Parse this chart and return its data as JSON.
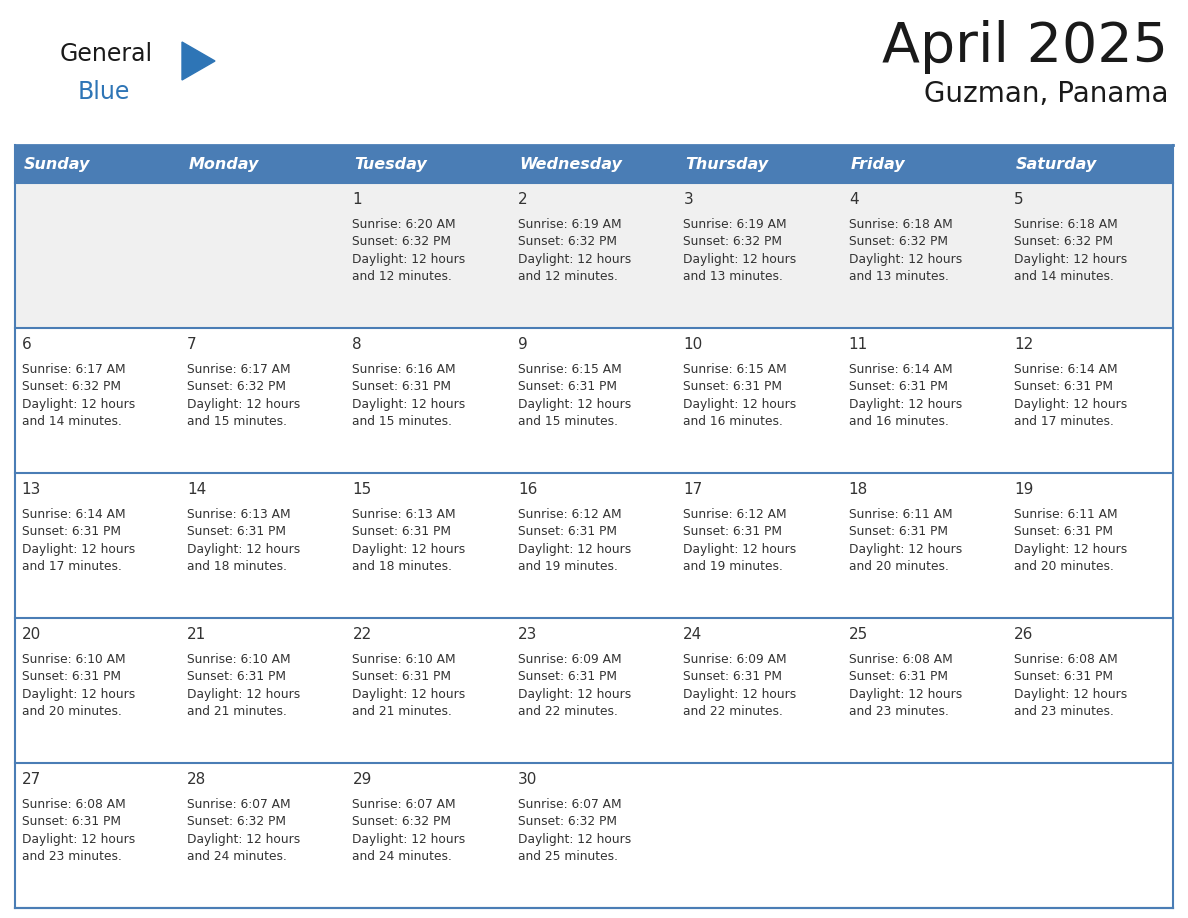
{
  "title": "April 2025",
  "subtitle": "Guzman, Panama",
  "days_of_week": [
    "Sunday",
    "Monday",
    "Tuesday",
    "Wednesday",
    "Thursday",
    "Friday",
    "Saturday"
  ],
  "header_bg": "#4A7DB5",
  "header_text": "#FFFFFF",
  "cell_bg": "#FFFFFF",
  "first_row_bg": "#F0F0F0",
  "cell_text_color": "#333333",
  "day_num_color": "#333333",
  "grid_line_color": "#4A7DB5",
  "title_color": "#1a1a1a",
  "subtitle_color": "#1a1a1a",
  "logo_general_color": "#1a1a1a",
  "logo_blue_color": "#2E75B6",
  "calendar_data": [
    [
      {
        "day": null,
        "info": null
      },
      {
        "day": null,
        "info": null
      },
      {
        "day": 1,
        "info": "Sunrise: 6:20 AM\nSunset: 6:32 PM\nDaylight: 12 hours\nand 12 minutes."
      },
      {
        "day": 2,
        "info": "Sunrise: 6:19 AM\nSunset: 6:32 PM\nDaylight: 12 hours\nand 12 minutes."
      },
      {
        "day": 3,
        "info": "Sunrise: 6:19 AM\nSunset: 6:32 PM\nDaylight: 12 hours\nand 13 minutes."
      },
      {
        "day": 4,
        "info": "Sunrise: 6:18 AM\nSunset: 6:32 PM\nDaylight: 12 hours\nand 13 minutes."
      },
      {
        "day": 5,
        "info": "Sunrise: 6:18 AM\nSunset: 6:32 PM\nDaylight: 12 hours\nand 14 minutes."
      }
    ],
    [
      {
        "day": 6,
        "info": "Sunrise: 6:17 AM\nSunset: 6:32 PM\nDaylight: 12 hours\nand 14 minutes."
      },
      {
        "day": 7,
        "info": "Sunrise: 6:17 AM\nSunset: 6:32 PM\nDaylight: 12 hours\nand 15 minutes."
      },
      {
        "day": 8,
        "info": "Sunrise: 6:16 AM\nSunset: 6:31 PM\nDaylight: 12 hours\nand 15 minutes."
      },
      {
        "day": 9,
        "info": "Sunrise: 6:15 AM\nSunset: 6:31 PM\nDaylight: 12 hours\nand 15 minutes."
      },
      {
        "day": 10,
        "info": "Sunrise: 6:15 AM\nSunset: 6:31 PM\nDaylight: 12 hours\nand 16 minutes."
      },
      {
        "day": 11,
        "info": "Sunrise: 6:14 AM\nSunset: 6:31 PM\nDaylight: 12 hours\nand 16 minutes."
      },
      {
        "day": 12,
        "info": "Sunrise: 6:14 AM\nSunset: 6:31 PM\nDaylight: 12 hours\nand 17 minutes."
      }
    ],
    [
      {
        "day": 13,
        "info": "Sunrise: 6:14 AM\nSunset: 6:31 PM\nDaylight: 12 hours\nand 17 minutes."
      },
      {
        "day": 14,
        "info": "Sunrise: 6:13 AM\nSunset: 6:31 PM\nDaylight: 12 hours\nand 18 minutes."
      },
      {
        "day": 15,
        "info": "Sunrise: 6:13 AM\nSunset: 6:31 PM\nDaylight: 12 hours\nand 18 minutes."
      },
      {
        "day": 16,
        "info": "Sunrise: 6:12 AM\nSunset: 6:31 PM\nDaylight: 12 hours\nand 19 minutes."
      },
      {
        "day": 17,
        "info": "Sunrise: 6:12 AM\nSunset: 6:31 PM\nDaylight: 12 hours\nand 19 minutes."
      },
      {
        "day": 18,
        "info": "Sunrise: 6:11 AM\nSunset: 6:31 PM\nDaylight: 12 hours\nand 20 minutes."
      },
      {
        "day": 19,
        "info": "Sunrise: 6:11 AM\nSunset: 6:31 PM\nDaylight: 12 hours\nand 20 minutes."
      }
    ],
    [
      {
        "day": 20,
        "info": "Sunrise: 6:10 AM\nSunset: 6:31 PM\nDaylight: 12 hours\nand 20 minutes."
      },
      {
        "day": 21,
        "info": "Sunrise: 6:10 AM\nSunset: 6:31 PM\nDaylight: 12 hours\nand 21 minutes."
      },
      {
        "day": 22,
        "info": "Sunrise: 6:10 AM\nSunset: 6:31 PM\nDaylight: 12 hours\nand 21 minutes."
      },
      {
        "day": 23,
        "info": "Sunrise: 6:09 AM\nSunset: 6:31 PM\nDaylight: 12 hours\nand 22 minutes."
      },
      {
        "day": 24,
        "info": "Sunrise: 6:09 AM\nSunset: 6:31 PM\nDaylight: 12 hours\nand 22 minutes."
      },
      {
        "day": 25,
        "info": "Sunrise: 6:08 AM\nSunset: 6:31 PM\nDaylight: 12 hours\nand 23 minutes."
      },
      {
        "day": 26,
        "info": "Sunrise: 6:08 AM\nSunset: 6:31 PM\nDaylight: 12 hours\nand 23 minutes."
      }
    ],
    [
      {
        "day": 27,
        "info": "Sunrise: 6:08 AM\nSunset: 6:31 PM\nDaylight: 12 hours\nand 23 minutes."
      },
      {
        "day": 28,
        "info": "Sunrise: 6:07 AM\nSunset: 6:32 PM\nDaylight: 12 hours\nand 24 minutes."
      },
      {
        "day": 29,
        "info": "Sunrise: 6:07 AM\nSunset: 6:32 PM\nDaylight: 12 hours\nand 24 minutes."
      },
      {
        "day": 30,
        "info": "Sunrise: 6:07 AM\nSunset: 6:32 PM\nDaylight: 12 hours\nand 25 minutes."
      },
      {
        "day": null,
        "info": null
      },
      {
        "day": null,
        "info": null
      },
      {
        "day": null,
        "info": null
      }
    ]
  ]
}
